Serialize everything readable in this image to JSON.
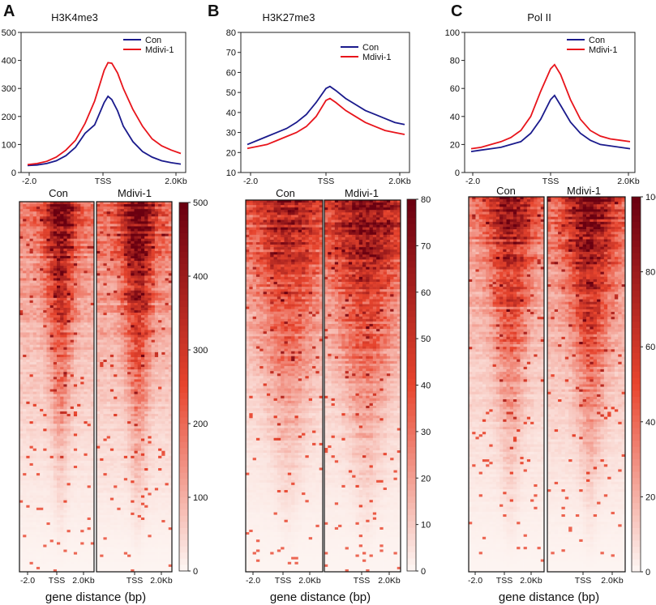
{
  "chart_data": [
    {
      "panel": "A",
      "type": "line",
      "title": "H3K4me3",
      "x_ticks": [
        "-2.0",
        "TSS",
        "2.0Kb"
      ],
      "ylim": [
        0,
        500
      ],
      "y_ticks": [
        0,
        100,
        200,
        300,
        400,
        500
      ],
      "x": [
        -2.0,
        -1.75,
        -1.5,
        -1.25,
        -1.0,
        -0.75,
        -0.5,
        -0.25,
        0.0,
        0.1,
        0.2,
        0.35,
        0.5,
        0.75,
        1.0,
        1.25,
        1.5,
        1.75,
        2.0
      ],
      "series": [
        {
          "name": "Con",
          "color": "#1a1a8c",
          "values": [
            25,
            27,
            32,
            42,
            60,
            90,
            140,
            170,
            250,
            272,
            260,
            220,
            165,
            110,
            75,
            55,
            42,
            35,
            30
          ]
        },
        {
          "name": "Mdivi-1",
          "color": "#e8141b",
          "values": [
            28,
            32,
            40,
            55,
            80,
            115,
            175,
            255,
            365,
            392,
            390,
            355,
            300,
            225,
            165,
            120,
            95,
            80,
            68
          ]
        }
      ],
      "legend": "top-right",
      "heatmap": {
        "columns": [
          "Con",
          "Mdivi-1"
        ],
        "colorbar_ticks": [
          0,
          100,
          200,
          300,
          400,
          500
        ],
        "x_ticks": [
          "-2.0",
          "TSS",
          "2.0Kb"
        ]
      }
    },
    {
      "panel": "B",
      "type": "line",
      "title": "H3K27me3",
      "x_ticks": [
        "-2.0",
        "TSS",
        "2.0Kb"
      ],
      "ylim": [
        10,
        80
      ],
      "y_ticks": [
        10,
        20,
        30,
        40,
        50,
        60,
        70,
        80
      ],
      "x": [
        -2.0,
        -1.75,
        -1.5,
        -1.25,
        -1.0,
        -0.75,
        -0.5,
        -0.25,
        0.0,
        0.1,
        0.25,
        0.5,
        0.75,
        1.0,
        1.25,
        1.5,
        1.75,
        2.0
      ],
      "series": [
        {
          "name": "Con",
          "color": "#1a1a8c",
          "values": [
            24,
            26,
            28,
            30,
            32,
            35,
            39,
            45,
            52,
            53,
            51,
            47,
            44,
            41,
            39,
            37,
            35,
            34
          ]
        },
        {
          "name": "Mdivi-1",
          "color": "#e8141b",
          "values": [
            22,
            23,
            24,
            26,
            28,
            30,
            33,
            38,
            46,
            47,
            45,
            41,
            38,
            35,
            33,
            31,
            30,
            29
          ]
        }
      ],
      "legend": "top-right",
      "heatmap": {
        "columns": [
          "Con",
          "Mdivi-1"
        ],
        "colorbar_ticks": [
          0,
          10,
          20,
          30,
          40,
          50,
          60,
          70,
          80
        ],
        "x_ticks": [
          "-2.0",
          "TSS",
          "2.0Kb"
        ]
      }
    },
    {
      "panel": "C",
      "type": "line",
      "title": "Pol II",
      "x_ticks": [
        "-2.0",
        "TSS",
        "2.0Kb"
      ],
      "ylim": [
        0,
        100
      ],
      "y_ticks": [
        0,
        20,
        40,
        60,
        80,
        100
      ],
      "x": [
        -2.0,
        -1.75,
        -1.5,
        -1.25,
        -1.0,
        -0.75,
        -0.5,
        -0.25,
        0.0,
        0.1,
        0.25,
        0.5,
        0.75,
        1.0,
        1.25,
        1.5,
        1.75,
        2.0
      ],
      "series": [
        {
          "name": "Con",
          "color": "#1a1a8c",
          "values": [
            15,
            16,
            17,
            18,
            20,
            22,
            28,
            38,
            52,
            55,
            48,
            36,
            28,
            23,
            20,
            19,
            18,
            17
          ]
        },
        {
          "name": "Mdivi-1",
          "color": "#e8141b",
          "values": [
            17,
            18,
            20,
            22,
            25,
            30,
            40,
            58,
            74,
            77,
            70,
            52,
            38,
            30,
            26,
            24,
            23,
            22
          ]
        }
      ],
      "legend": "top-right",
      "heatmap": {
        "columns": [
          "Con",
          "Mdivi-1"
        ],
        "colorbar_ticks": [
          0,
          20,
          40,
          60,
          80,
          100
        ],
        "x_ticks": [
          "-2.0",
          "TSS",
          "2.0Kb"
        ]
      }
    }
  ],
  "xlabel": "gene distance (bp)",
  "colors": {
    "con": "#1a1a8c",
    "mdivi": "#e8141b",
    "heat_low": "#fdf4f1",
    "heat_mid": "#e8452e",
    "heat_high": "#6b0010"
  }
}
